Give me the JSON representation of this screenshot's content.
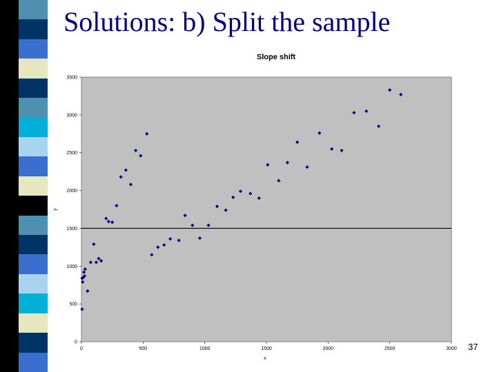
{
  "slide": {
    "title": "Solutions: b) Split the sample",
    "number": "37"
  },
  "side_strip": {
    "colors": [
      "#4f8fb0",
      "#003366",
      "#3a6fd0",
      "#e6e6bf",
      "#003366",
      "#4f8fb0",
      "#00b0d8",
      "#a8d4f0",
      "#3a6fd0",
      "#e6e6bf",
      "#000000",
      "#4f8fb0",
      "#003366",
      "#3a6fd0",
      "#a8d4f0",
      "#00b0d8",
      "#e6e6bf",
      "#003366",
      "#3a6fd0"
    ]
  },
  "colors": {
    "title": "#000080",
    "plot_area": "#c0c0c0",
    "marker": "#000080",
    "split_line": "#000000"
  },
  "chart_data": {
    "type": "scatter",
    "title": "Slope shift",
    "xlabel": "x",
    "ylabel": "y",
    "xlim": [
      0,
      3000
    ],
    "ylim": [
      0,
      3500
    ],
    "x_ticks": [
      0,
      500,
      1000,
      1500,
      2000,
      2500,
      3000
    ],
    "y_ticks": [
      0,
      500,
      1000,
      1500,
      2000,
      2500,
      3000,
      3500
    ],
    "grid": false,
    "legend": "none",
    "horizontal_line_y": 1500,
    "series": [
      {
        "points": [
          [
            5,
            430
          ],
          [
            5,
            840
          ],
          [
            10,
            790
          ],
          [
            15,
            850
          ],
          [
            20,
            920
          ],
          [
            25,
            870
          ],
          [
            30,
            960
          ],
          [
            50,
            670
          ],
          [
            75,
            1050
          ],
          [
            100,
            1290
          ],
          [
            120,
            1050
          ],
          [
            140,
            1100
          ],
          [
            160,
            1070
          ],
          [
            200,
            1630
          ],
          [
            220,
            1590
          ],
          [
            250,
            1580
          ],
          [
            285,
            1800
          ],
          [
            320,
            2180
          ],
          [
            360,
            2270
          ],
          [
            400,
            2080
          ],
          [
            440,
            2530
          ],
          [
            480,
            2460
          ],
          [
            530,
            2750
          ],
          [
            570,
            1150
          ],
          [
            620,
            1250
          ],
          [
            670,
            1280
          ],
          [
            720,
            1360
          ],
          [
            790,
            1340
          ],
          [
            840,
            1670
          ],
          [
            900,
            1540
          ],
          [
            960,
            1370
          ],
          [
            1030,
            1540
          ],
          [
            1100,
            1790
          ],
          [
            1170,
            1740
          ],
          [
            1230,
            1910
          ],
          [
            1290,
            1990
          ],
          [
            1370,
            1960
          ],
          [
            1440,
            1900
          ],
          [
            1510,
            2340
          ],
          [
            1600,
            2130
          ],
          [
            1670,
            2370
          ],
          [
            1750,
            2640
          ],
          [
            1830,
            2310
          ],
          [
            1930,
            2760
          ],
          [
            2030,
            2550
          ],
          [
            2110,
            2530
          ],
          [
            2210,
            3030
          ],
          [
            2310,
            3050
          ],
          [
            2410,
            2850
          ],
          [
            2500,
            3330
          ],
          [
            2590,
            3270
          ]
        ]
      }
    ]
  }
}
